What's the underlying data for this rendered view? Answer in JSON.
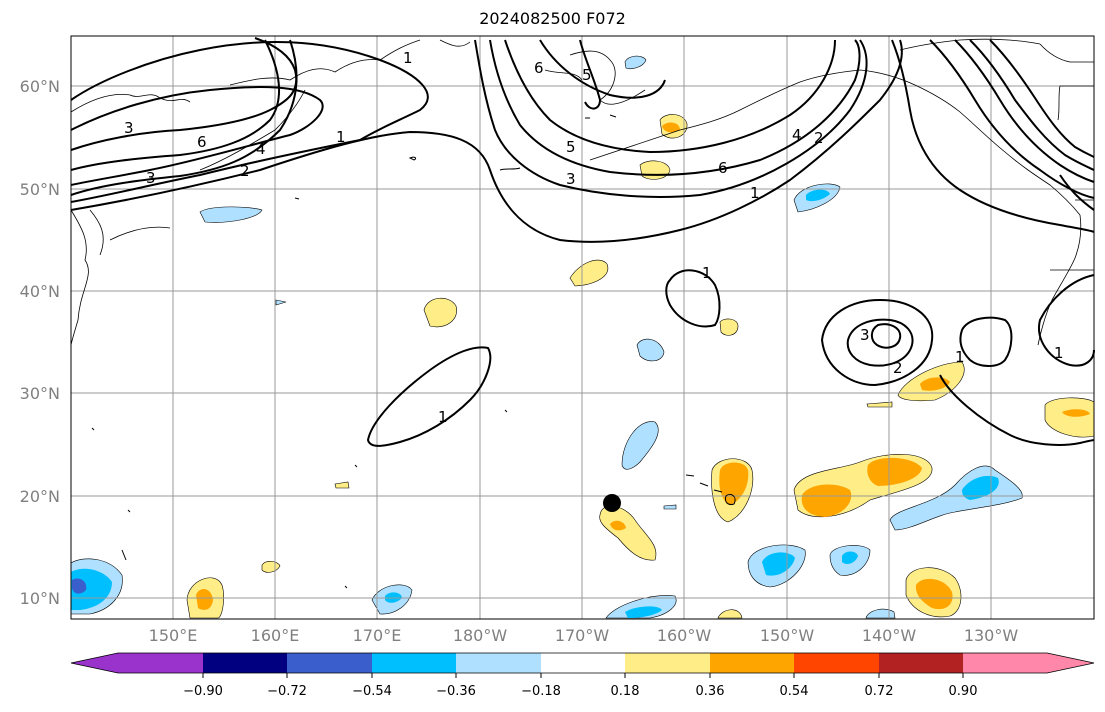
{
  "title": "2024082500 F072",
  "lat_labels": [
    "60°N",
    "50°N",
    "40°N",
    "30°N",
    "20°N",
    "10°N"
  ],
  "lon_labels": [
    "150°E",
    "160°E",
    "170°E",
    "180°W",
    "170°W",
    "160°W",
    "150°W",
    "140°W",
    "130°W"
  ],
  "colorbar": {
    "colors": [
      "#9933cc",
      "#000080",
      "#3a5fcd",
      "#00bfff",
      "#b0e0ff",
      "#ffffff",
      "#ffee88",
      "#ffa500",
      "#ff4500",
      "#b22222",
      "#ff88aa"
    ],
    "ticks": [
      "−0.90",
      "−0.72",
      "−0.54",
      "−0.36",
      "−0.18",
      "0.18",
      "0.36",
      "0.54",
      "0.72",
      "0.90"
    ]
  },
  "contour_labels": [
    "1",
    "1",
    "1",
    "1",
    "1",
    "1",
    "1",
    "2",
    "2",
    "2",
    "3",
    "3",
    "3",
    "3",
    "4",
    "4",
    "5",
    "5",
    "6",
    "6",
    "6"
  ],
  "marker": {
    "lat": 19.4,
    "lon": -166.6
  }
}
